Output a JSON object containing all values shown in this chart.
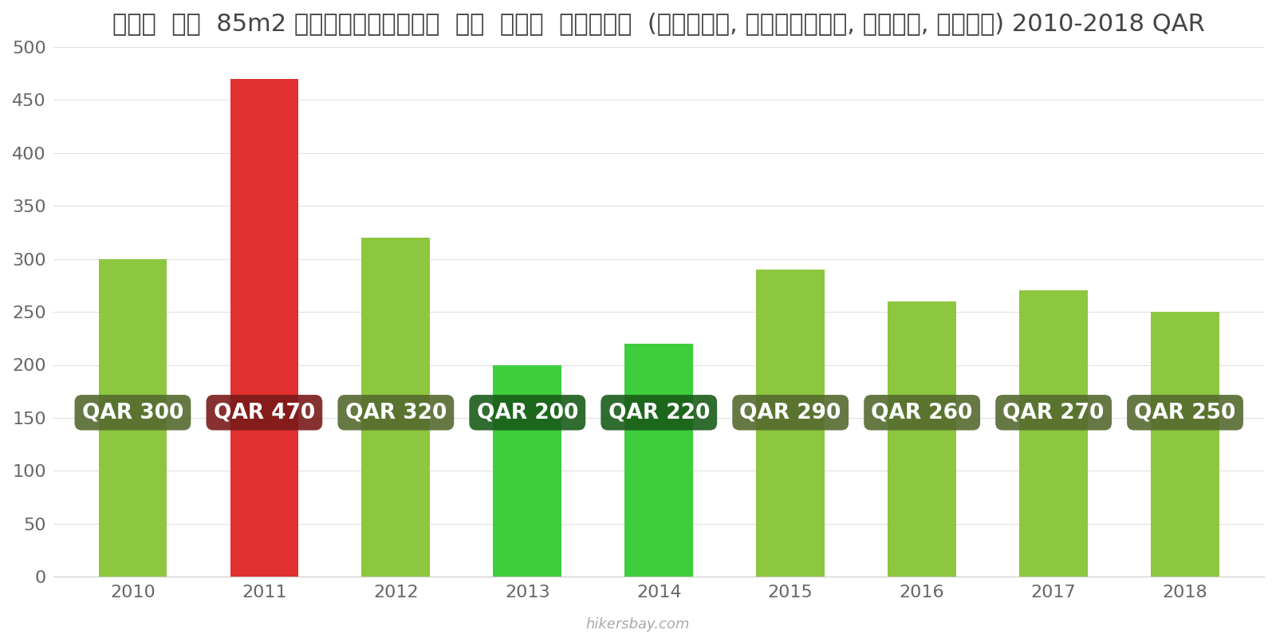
{
  "years": [
    2010,
    2011,
    2012,
    2013,
    2014,
    2015,
    2016,
    2017,
    2018
  ],
  "values": [
    300,
    470,
    320,
    200,
    220,
    290,
    260,
    270,
    250
  ],
  "bar_colors": [
    "#8dc63f",
    "#e03030",
    "#8dc63f",
    "#3dcd3d",
    "#3dcd3d",
    "#8dc63f",
    "#8dc63f",
    "#8dc63f",
    "#8dc63f"
  ],
  "label_bg_colors": [
    "#556b2f",
    "#7a1a1a",
    "#556b2f",
    "#1a5c1a",
    "#1a5c1a",
    "#556b2f",
    "#556b2f",
    "#556b2f",
    "#556b2f"
  ],
  "label_y_abs": [
    155,
    255,
    155,
    130,
    130,
    155,
    155,
    155,
    155
  ],
  "title": "कतर  एक  85m2 अपार्टमेंट  के  लिए  शुल्क  (बिजली, हींटिंग, पानी, कचरा) 2010-2018 QAR",
  "ylim": [
    0,
    500
  ],
  "yticks": [
    0,
    50,
    100,
    150,
    200,
    250,
    300,
    350,
    400,
    450,
    500
  ],
  "background_color": "#ffffff",
  "watermark": "hikersbay.com",
  "title_fontsize": 22,
  "label_fontsize": 19,
  "tick_fontsize": 16
}
